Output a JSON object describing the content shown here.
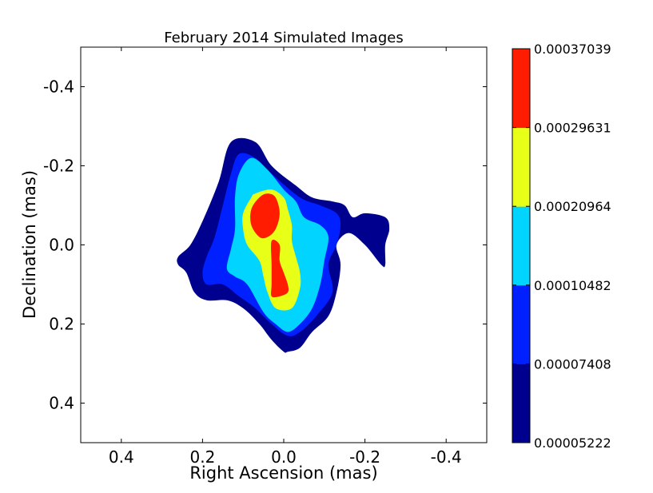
{
  "chart_data": {
    "type": "contour",
    "title": "February 2014 Simulated Images",
    "xlabel": "Right Ascension (mas)",
    "ylabel": "Declination (mas)",
    "xlim": [
      0.5,
      -0.5
    ],
    "ylim": [
      0.5,
      -0.5
    ],
    "x_ticks": [
      {
        "value": 0.4,
        "label": "0.4"
      },
      {
        "value": 0.2,
        "label": "0.2"
      },
      {
        "value": 0.0,
        "label": "0.0"
      },
      {
        "value": -0.2,
        "label": "-0.2"
      },
      {
        "value": -0.4,
        "label": "-0.4"
      }
    ],
    "y_ticks": [
      {
        "value": -0.4,
        "label": "-0.4"
      },
      {
        "value": -0.2,
        "label": "-0.2"
      },
      {
        "value": 0.0,
        "label": "0.0"
      },
      {
        "value": 0.2,
        "label": "0.2"
      },
      {
        "value": 0.4,
        "label": "0.4"
      }
    ],
    "colorbar": {
      "levels": [
        {
          "value": 5.222e-05,
          "label": "0.00005222"
        },
        {
          "value": 7.408e-05,
          "label": "0.00007408"
        },
        {
          "value": 0.00010482,
          "label": "0.00010482"
        },
        {
          "value": 0.00020964,
          "label": "0.00020964"
        },
        {
          "value": 0.00029631,
          "label": "0.00029631"
        },
        {
          "value": 0.00037039,
          "label": "0.00037039"
        }
      ],
      "colors": [
        "#00008f",
        "#0020ff",
        "#00d4ff",
        "#e8ff18",
        "#ff1c00"
      ]
    },
    "contours": [
      {
        "level_index": 0,
        "color": "#00008f",
        "polygons": [
          [
            [
              0.13,
              -0.26
            ],
            [
              0.07,
              -0.26
            ],
            [
              0.03,
              -0.2
            ],
            [
              -0.03,
              -0.15
            ],
            [
              -0.07,
              -0.12
            ],
            [
              -0.12,
              -0.11
            ],
            [
              -0.15,
              -0.1
            ],
            [
              -0.17,
              -0.07
            ],
            [
              -0.2,
              -0.08
            ],
            [
              -0.25,
              -0.07
            ],
            [
              -0.26,
              -0.04
            ],
            [
              -0.25,
              0.0
            ],
            [
              -0.25,
              0.05
            ],
            [
              -0.24,
              0.05
            ],
            [
              -0.2,
              0.0
            ],
            [
              -0.16,
              -0.03
            ],
            [
              -0.13,
              0.0
            ],
            [
              -0.14,
              0.05
            ],
            [
              -0.13,
              0.12
            ],
            [
              -0.11,
              0.18
            ],
            [
              -0.07,
              0.22
            ],
            [
              -0.04,
              0.26
            ],
            [
              -0.01,
              0.27
            ],
            [
              0.0,
              0.27
            ],
            [
              0.03,
              0.24
            ],
            [
              0.06,
              0.2
            ],
            [
              0.1,
              0.16
            ],
            [
              0.14,
              0.14
            ],
            [
              0.19,
              0.14
            ],
            [
              0.22,
              0.12
            ],
            [
              0.24,
              0.07
            ],
            [
              0.26,
              0.05
            ],
            [
              0.26,
              0.03
            ],
            [
              0.23,
              0.0
            ],
            [
              0.2,
              -0.06
            ],
            [
              0.16,
              -0.16
            ],
            [
              0.13,
              -0.26
            ]
          ]
        ]
      },
      {
        "level_index": 1,
        "color": "#0020ff",
        "polygons": [
          [
            [
              0.11,
              -0.23
            ],
            [
              0.07,
              -0.22
            ],
            [
              0.03,
              -0.18
            ],
            [
              -0.04,
              -0.12
            ],
            [
              -0.09,
              -0.1
            ],
            [
              -0.13,
              -0.08
            ],
            [
              -0.14,
              -0.05
            ],
            [
              -0.13,
              0.0
            ],
            [
              -0.11,
              0.05
            ],
            [
              -0.12,
              0.12
            ],
            [
              -0.08,
              0.18
            ],
            [
              -0.04,
              0.22
            ],
            [
              -0.01,
              0.23
            ],
            [
              0.03,
              0.2
            ],
            [
              0.07,
              0.16
            ],
            [
              0.11,
              0.13
            ],
            [
              0.15,
              0.1
            ],
            [
              0.19,
              0.1
            ],
            [
              0.2,
              0.07
            ],
            [
              0.19,
              0.03
            ],
            [
              0.17,
              -0.02
            ],
            [
              0.15,
              -0.1
            ],
            [
              0.13,
              -0.18
            ],
            [
              0.11,
              -0.23
            ]
          ]
        ]
      },
      {
        "level_index": 2,
        "color": "#00d4ff",
        "polygons": [
          [
            [
              0.08,
              -0.22
            ],
            [
              0.04,
              -0.19
            ],
            [
              0.0,
              -0.14
            ],
            [
              -0.03,
              -0.11
            ],
            [
              -0.05,
              -0.07
            ],
            [
              -0.09,
              -0.05
            ],
            [
              -0.11,
              -0.02
            ],
            [
              -0.1,
              0.04
            ],
            [
              -0.09,
              0.1
            ],
            [
              -0.07,
              0.16
            ],
            [
              -0.04,
              0.2
            ],
            [
              -0.01,
              0.22
            ],
            [
              0.02,
              0.2
            ],
            [
              0.05,
              0.17
            ],
            [
              0.09,
              0.1
            ],
            [
              0.12,
              0.08
            ],
            [
              0.14,
              0.06
            ],
            [
              0.13,
              0.01
            ],
            [
              0.12,
              -0.04
            ],
            [
              0.12,
              -0.12
            ],
            [
              0.11,
              -0.18
            ],
            [
              0.08,
              -0.22
            ]
          ]
        ]
      },
      {
        "level_index": 3,
        "color": "#e8ff18",
        "polygons": [
          [
            [
              0.07,
              -0.13
            ],
            [
              0.03,
              -0.14
            ],
            [
              0.0,
              -0.12
            ],
            [
              -0.01,
              -0.09
            ],
            [
              -0.02,
              -0.05
            ],
            [
              -0.02,
              -0.01
            ],
            [
              -0.03,
              0.03
            ],
            [
              -0.04,
              0.07
            ],
            [
              -0.04,
              0.11
            ],
            [
              -0.02,
              0.16
            ],
            [
              0.02,
              0.16
            ],
            [
              0.04,
              0.12
            ],
            [
              0.05,
              0.08
            ],
            [
              0.06,
              0.04
            ],
            [
              0.09,
              0.0
            ],
            [
              0.1,
              -0.04
            ],
            [
              0.1,
              -0.08
            ],
            [
              0.08,
              -0.12
            ],
            [
              0.07,
              -0.13
            ]
          ]
        ]
      },
      {
        "level_index": 4,
        "color": "#ff1c00",
        "polygons": [
          [
            [
              0.06,
              -0.12
            ],
            [
              0.04,
              -0.13
            ],
            [
              0.02,
              -0.12
            ],
            [
              0.01,
              -0.08
            ],
            [
              0.02,
              -0.04
            ],
            [
              0.04,
              -0.02
            ],
            [
              0.06,
              -0.02
            ],
            [
              0.08,
              -0.05
            ],
            [
              0.08,
              -0.09
            ],
            [
              0.06,
              -0.12
            ]
          ],
          [
            [
              0.03,
              -0.01
            ],
            [
              0.01,
              0.0
            ],
            [
              0.01,
              0.04
            ],
            [
              0.0,
              0.07
            ],
            [
              -0.01,
              0.1
            ],
            [
              -0.01,
              0.12
            ],
            [
              0.01,
              0.13
            ],
            [
              0.03,
              0.13
            ],
            [
              0.03,
              0.1
            ],
            [
              0.03,
              0.05
            ],
            [
              0.03,
              -0.01
            ]
          ]
        ]
      }
    ]
  }
}
